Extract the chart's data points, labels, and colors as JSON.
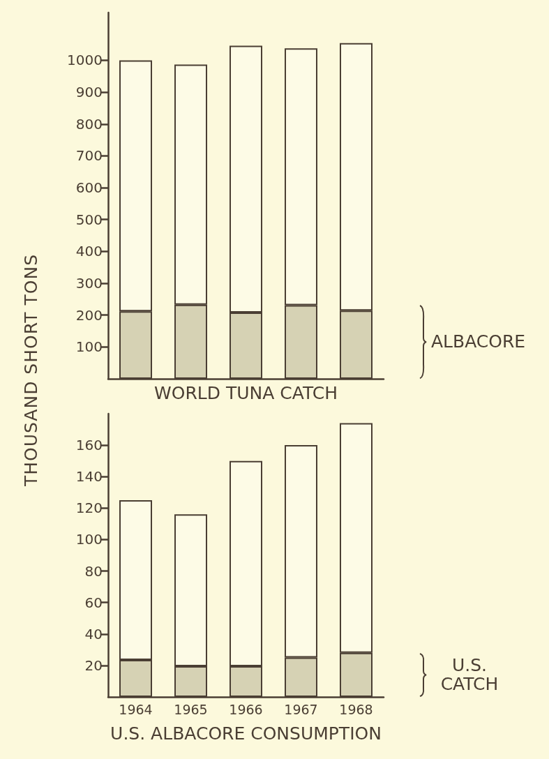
{
  "chart_data": [
    {
      "type": "bar",
      "stacked": true,
      "ylabel": "THOUSAND SHORT TONS",
      "xlabel": "WORLD TUNA CATCH",
      "categories": [
        "1964",
        "1965",
        "1966",
        "1967",
        "1968"
      ],
      "tick_labels": "y",
      "series": [
        {
          "name": "ALBACORE",
          "color": "#d6d2b4",
          "values": [
            212,
            233,
            208,
            231,
            214
          ]
        },
        {
          "color": "#fdfbe6",
          "values": [
            788,
            754,
            838,
            807,
            840
          ]
        }
      ],
      "ylim": [
        0,
        1150
      ],
      "yticks": [
        100,
        200,
        300,
        400,
        500,
        600,
        700,
        800,
        900,
        1000
      ],
      "grid": false,
      "legend": false
    },
    {
      "type": "bar",
      "stacked": true,
      "xlabel": "U.S. ALBACORE CONSUMPTION",
      "categories": [
        "1964",
        "1965",
        "1966",
        "1967",
        "1968"
      ],
      "series": [
        {
          "name": "U.S. CATCH",
          "color": "#d6d2b4",
          "values": [
            23.5,
            19.5,
            19.5,
            25,
            28
          ]
        },
        {
          "color": "#fdfbe6",
          "values": [
            101.5,
            96.5,
            130.5,
            135,
            146
          ]
        }
      ],
      "ylim": [
        0,
        180
      ],
      "yticks": [
        20,
        40,
        60,
        80,
        100,
        120,
        140,
        160
      ],
      "grid": false,
      "legend": false
    }
  ]
}
